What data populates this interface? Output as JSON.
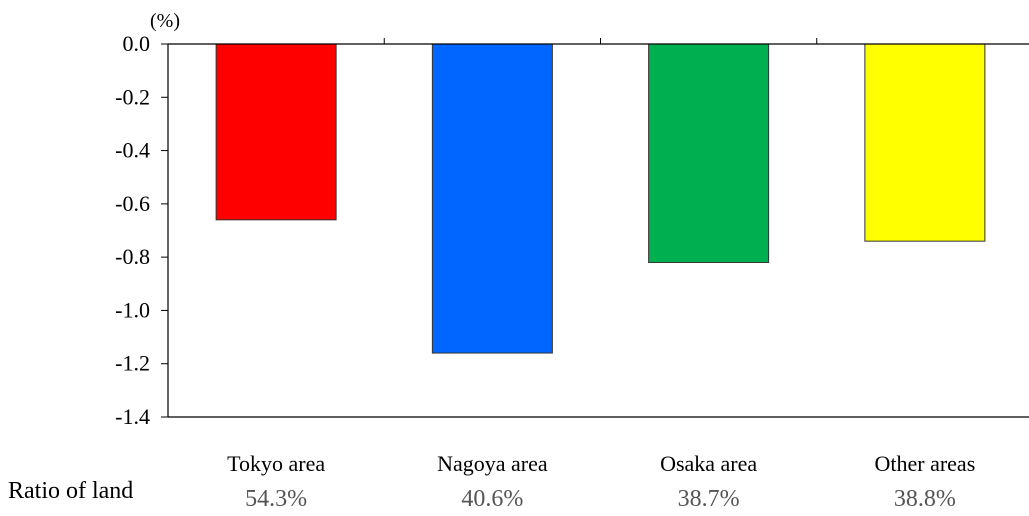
{
  "chart_data": {
    "type": "bar",
    "unit": "(%)",
    "categories": [
      "Tokyo area",
      "Nagoya area",
      "Osaka area",
      "Other areas"
    ],
    "values": [
      -0.66,
      -1.16,
      -0.82,
      -0.74
    ],
    "colors": [
      "#ff0000",
      "#0066ff",
      "#00b050",
      "#ffff00"
    ],
    "ylim": [
      -1.4,
      0.0
    ],
    "yticks": [
      "0.0",
      "-0.2",
      "-0.4",
      "-0.6",
      "-0.8",
      "-1.0",
      "-1.2",
      "-1.4"
    ],
    "ytick_values": [
      0.0,
      -0.2,
      -0.4,
      -0.6,
      -0.8,
      -1.0,
      -1.2,
      -1.4
    ],
    "grid": false,
    "xlabel": "",
    "ylabel": ""
  },
  "ratio_row": {
    "label": "Ratio of land",
    "values": [
      "54.3%",
      "40.6%",
      "38.7%",
      "38.8%"
    ]
  }
}
